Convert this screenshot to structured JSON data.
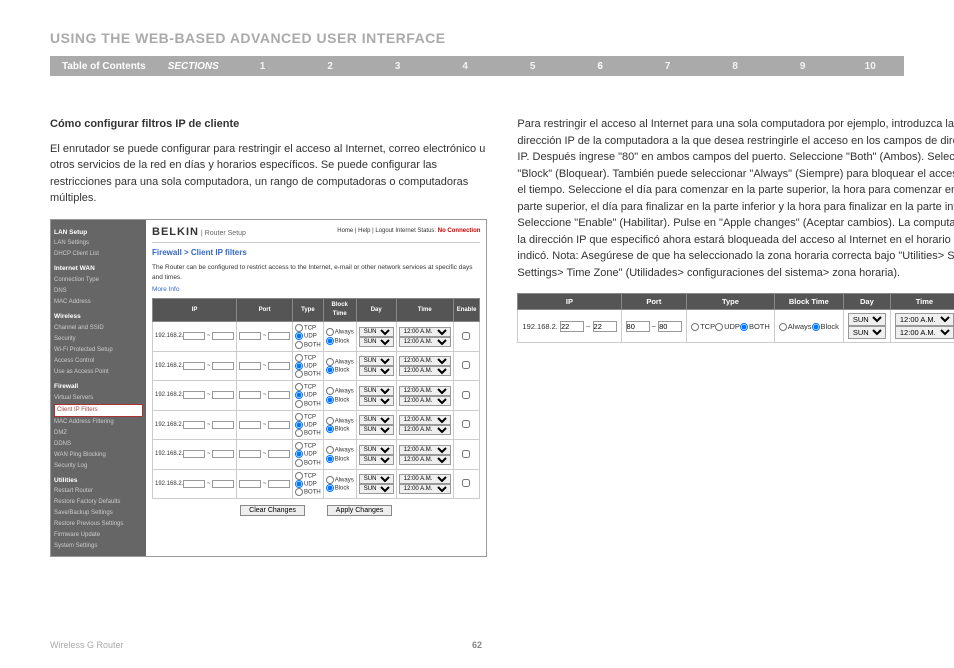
{
  "page": {
    "title": "USING THE WEB-BASED ADVANCED USER INTERFACE",
    "toc": "Table of Contents",
    "sections_label": "SECTIONS",
    "nums": [
      "1",
      "2",
      "3",
      "4",
      "5",
      "6",
      "7",
      "8",
      "9",
      "10"
    ],
    "active_section": "6",
    "footer_left": "Wireless G Router",
    "page_number": "62"
  },
  "left": {
    "subtitle": "Cómo configurar filtros IP de cliente",
    "para": "El enrutador se puede configurar para restringir el acceso al Internet, correo electrónico u otros servicios de la red en días y horarios específicos. Se puede configurar las restricciones para una sola computadora, un rango de computadoras o computadoras múltiples."
  },
  "right": {
    "para": "Para restringir el acceso al Internet para una sola computadora por ejemplo, introduzca la dirección IP de la computadora a la que desea restringirle el acceso en los campos de dirección IP. Después ingrese \"80\" en ambos campos del puerto. Seleccione \"Both\" (Ambos). Seleccione \"Block\" (Bloquear). También puede seleccionar \"Always\" (Siempre) para bloquear el acceso todo el tiempo. Seleccione el día para comenzar en la parte superior, la hora para comenzar en la parte superior, el día para finalizar en la parte inferior y la hora para finalizar en la parte inferior. Seleccione \"Enable\" (Habilitar). Pulse en \"Apple changes\" (Aceptar cambios). La computadora en la dirección IP que especificó ahora estará bloqueada del acceso al Internet en el horario que indicó. Nota: Asegúrese de que ha seleccionado la zona horaria correcta bajo \"Utilities> System Settings> Time Zone\" (Utilidades> configuraciones del sistema> zona horaria)."
  },
  "screenshot": {
    "brand": "BELKIN",
    "brand_sub": "Router Setup",
    "status_links": "Home | Help | Logout  Internet Status:",
    "status_val": "No Connection",
    "sidebar": {
      "groups": [
        {
          "header": "LAN Setup",
          "items": [
            "LAN Settings",
            "DHCP Client List"
          ]
        },
        {
          "header": "Internet WAN",
          "items": [
            "Connection Type",
            "DNS",
            "MAC Address"
          ]
        },
        {
          "header": "Wireless",
          "items": [
            "Channel and SSID",
            "Security",
            "Wi-Fi Protected Setup",
            "Access Control",
            "Use as Access Point"
          ]
        },
        {
          "header": "Firewall",
          "items": [
            "Virtual Servers",
            "Client IP Filters",
            "MAC Address Filtering",
            "DMZ",
            "DDNS",
            "WAN Ping Blocking",
            "Security Log"
          ]
        },
        {
          "header": "Utilities",
          "items": [
            "Restart Router",
            "Restore Factory Defaults",
            "Save/Backup Settings",
            "Restore Previous Settings",
            "Firmware Update",
            "System Settings"
          ]
        }
      ],
      "active": "Client IP Filters"
    },
    "breadcrumb": "Firewall > Client IP filters",
    "desc": "The Router can be configured to restrict access to the Internet, e-mail or other network services at specific days and times.",
    "more": "More Info",
    "headers": {
      "ip": "IP",
      "port": "Port",
      "type": "Type",
      "block": "Block Time",
      "day": "Day",
      "time": "Time",
      "enable": "Enable"
    },
    "type_opts": [
      "TCP",
      "UDP",
      "BOTH"
    ],
    "block_opts": [
      "Always",
      "Block"
    ],
    "ip_prefix": "192.168.2.",
    "day_val": "SUN",
    "time_val": "12:00 A.M.",
    "row_count": 6,
    "btn_clear": "Clear Changes",
    "btn_apply": "Apply Changes"
  },
  "mini": {
    "ip_prefix": "192.168.2.",
    "ip_a": "22",
    "ip_b": "22",
    "port_a": "80",
    "port_b": "80",
    "day": "SUN",
    "time": "12:00 A.M."
  }
}
